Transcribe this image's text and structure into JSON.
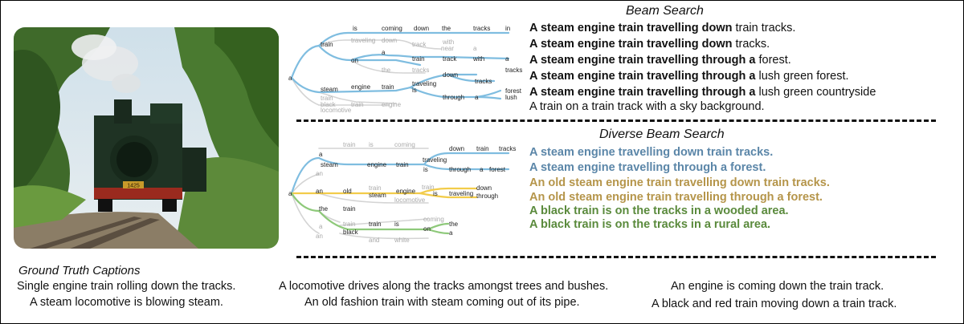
{
  "beam": {
    "title": "Beam Search",
    "captions": [
      {
        "bold": "A steam engine train travelling down",
        "rest": " train tracks."
      },
      {
        "bold": "A steam engine train travelling down",
        "rest": " tracks."
      },
      {
        "bold": "A steam engine train travelling through a",
        "rest": " forest."
      },
      {
        "bold": "A steam engine train travelling through a",
        "rest": " lush green forest."
      },
      {
        "bold": "A steam engine train travelling through a",
        "rest": " lush green countryside"
      },
      {
        "bold": "",
        "rest": "A train on a train track with a sky background."
      }
    ]
  },
  "diverse": {
    "title": "Diverse Beam Search",
    "captions": [
      {
        "text": "A steam engine travelling down train tracks.",
        "color": "#5b86a8"
      },
      {
        "text": "A steam engine travelling through a forest.",
        "color": "#5b86a8"
      },
      {
        "text": "An old steam engine train travelling down train tracks.",
        "color": "#b5954a"
      },
      {
        "text": "An old steam engine train travelling through a forest.",
        "color": "#b5954a"
      },
      {
        "text": "A black train is on the tracks in a wooded area.",
        "color": "#5a8a3c"
      },
      {
        "text": "A black train is on the tracks in a rural area.",
        "color": "#5a8a3c"
      }
    ]
  },
  "ground_truth": {
    "title": "Ground Truth Captions",
    "captions": [
      "Single engine train rolling down the tracks.",
      "A steam locomotive is blowing steam.",
      "A locomotive drives along the tracks amongst trees and bushes.",
      "An old fashion train with steam coming out of its pipe.",
      "An engine is coming down the train track.",
      "A black and red train moving down a train track."
    ]
  },
  "beam_tree_words": {
    "root": "a",
    "w1": "train",
    "w2": "is",
    "w3": "coming",
    "w4": "down",
    "w5": "the",
    "w6": "tracks",
    "w7": "in",
    "w8": "traveling",
    "w9": "down",
    "w10": "track",
    "w11": "with",
    "w12": "near",
    "w13": "a",
    "w14": "on",
    "w15": "a",
    "w16": "train",
    "w17": "track",
    "w18": "with",
    "w19": "a",
    "w20": "the",
    "w21": "tracks",
    "w22": "down",
    "w23": "tracks",
    "w24": "steam",
    "w25": "engine",
    "w26": "train",
    "w27": "traveling",
    "w28": "is",
    "w29": "tracks",
    "w30": "through",
    "w31": "a",
    "w32": "forest",
    "w33": "lush",
    "w34": "train",
    "w35": "black",
    "w36": "locomotive",
    "w37": "train",
    "w38": "engine"
  },
  "diverse_tree_words": {
    "root": "a",
    "w1": "a",
    "w2": "train",
    "w3": "is",
    "w4": "coming",
    "w5": "down",
    "w6": "train",
    "w7": "tracks",
    "w8": "steam",
    "w9": "engine",
    "w10": "train",
    "w11": "traveling",
    "w12": "is",
    "w13": "through",
    "w14": "a",
    "w15": "forest",
    "w16": "an",
    "w17": "an",
    "w18": "old",
    "w19": "train",
    "w20": "steam",
    "w21": "engine",
    "w22": "locomotive",
    "w23": "train",
    "w24": "is",
    "w25": "traveling",
    "w26": "down",
    "w27": "through",
    "w28": "the",
    "w29": "train",
    "w30": "a",
    "w31": "train",
    "w32": "black",
    "w33": "train",
    "w34": "is",
    "w35": "coming",
    "w36": "on",
    "w37": "the",
    "w38": "a",
    "w39": "an",
    "w40": "and",
    "w41": "white"
  },
  "photo": {
    "plate_text": "1425"
  }
}
